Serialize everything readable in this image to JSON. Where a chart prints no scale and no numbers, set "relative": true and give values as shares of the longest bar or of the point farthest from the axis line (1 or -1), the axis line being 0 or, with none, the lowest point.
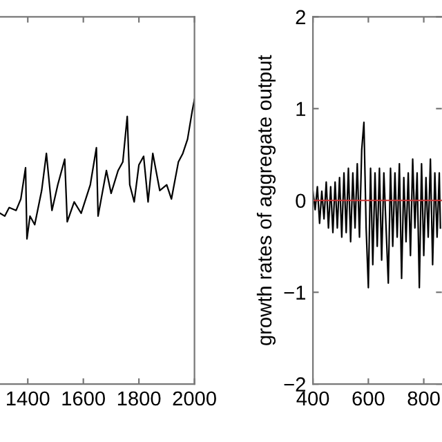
{
  "chart_data": [
    {
      "type": "line",
      "relative": true,
      "xlim": [
        1300,
        2000
      ],
      "xticks": [
        1400,
        1600,
        1800,
        2000
      ],
      "tick_labels": "x",
      "x": [
        1300,
        1317,
        1333,
        1358,
        1375,
        1392,
        1397,
        1408,
        1425,
        1450,
        1467,
        1487,
        1508,
        1533,
        1542,
        1567,
        1592,
        1625,
        1647,
        1653,
        1683,
        1700,
        1725,
        1742,
        1758,
        1767,
        1783,
        1800,
        1817,
        1833,
        1850,
        1875,
        1900,
        1917,
        1942,
        1958,
        1975,
        1992,
        2000
      ],
      "series": [
        {
          "color": "#000000",
          "values": [
            0.6,
            0.59,
            0.62,
            0.61,
            0.65,
            0.76,
            0.51,
            0.59,
            0.56,
            0.68,
            0.81,
            0.61,
            0.7,
            0.79,
            0.57,
            0.64,
            0.6,
            0.7,
            0.83,
            0.59,
            0.75,
            0.67,
            0.75,
            0.78,
            0.94,
            0.7,
            0.64,
            0.77,
            0.8,
            0.64,
            0.81,
            0.68,
            0.7,
            0.65,
            0.78,
            0.81,
            0.86,
            0.96,
            1.0
          ]
        }
      ]
    },
    {
      "type": "line",
      "ylabel": "growth rates of aggregate output",
      "xlim": [
        400,
        865
      ],
      "xticks": [
        400,
        600,
        800
      ],
      "ylim": [
        -2,
        2
      ],
      "yticks": [
        -2,
        -1,
        0,
        1,
        2
      ],
      "ref_lines": [
        {
          "axis": "y",
          "value": 0,
          "color": "#cc3333"
        }
      ],
      "x": [
        400,
        408,
        416,
        424,
        432,
        440,
        448,
        456,
        464,
        472,
        480,
        488,
        496,
        504,
        512,
        520,
        528,
        536,
        544,
        552,
        560,
        568,
        576,
        584,
        592,
        600,
        608,
        616,
        624,
        632,
        640,
        648,
        656,
        664,
        672,
        680,
        688,
        696,
        704,
        712,
        720,
        728,
        736,
        744,
        752,
        760,
        768,
        776,
        784,
        792,
        800,
        808,
        816,
        824,
        832,
        840,
        848,
        856,
        860
      ],
      "series": [
        {
          "color": "#000000",
          "values": [
            0.1,
            -0.1,
            0.15,
            -0.25,
            0.1,
            -0.2,
            0.2,
            -0.3,
            0.15,
            -0.35,
            0.2,
            -0.3,
            0.25,
            -0.4,
            0.3,
            -0.35,
            0.35,
            -0.45,
            0.3,
            -0.3,
            0.4,
            -0.4,
            0.55,
            0.85,
            -0.3,
            -0.95,
            0.35,
            -0.7,
            0.3,
            -0.5,
            0.35,
            -0.65,
            0.3,
            -0.3,
            -0.9,
            0.35,
            -0.5,
            0.3,
            -0.4,
            0.4,
            -0.85,
            0.25,
            -0.45,
            0.3,
            -0.6,
            0.45,
            -0.3,
            0.3,
            -0.95,
            0.4,
            -0.6,
            0.25,
            -0.4,
            0.45,
            -0.7,
            0.3,
            -0.4,
            0.3,
            -0.3
          ]
        }
      ]
    }
  ]
}
